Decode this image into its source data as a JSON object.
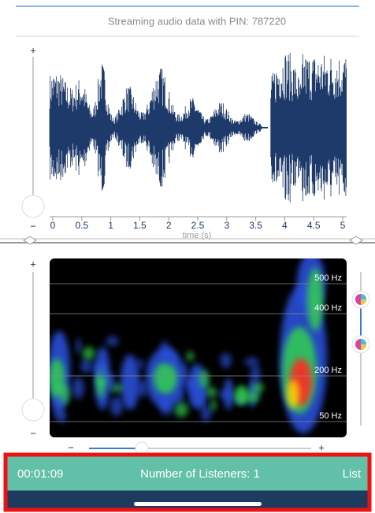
{
  "header": {
    "title": "Streaming audio data with PIN: 787220"
  },
  "waveform": {
    "zoom_plus": "+",
    "zoom_minus": "−",
    "x_ticks": [
      "0",
      "0.5",
      "1",
      "1.5",
      "2",
      "2.5",
      "3",
      "3.5",
      "4",
      "4.5",
      "5"
    ],
    "x_label": "time (s)"
  },
  "spectrogram": {
    "zoom_plus": "+",
    "zoom_minus": "−",
    "freq_labels": [
      "500 Hz",
      "400 Hz",
      "200 Hz",
      "50 Hz"
    ],
    "slider_minus": "−",
    "slider_plus": "+"
  },
  "footer": {
    "elapsed": "00:01:09",
    "listeners": "Number of Listeners: 1",
    "list_button": "List"
  }
}
